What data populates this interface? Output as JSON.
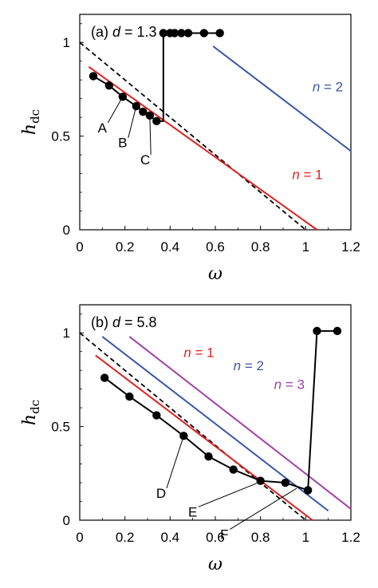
{
  "chart_data": [
    {
      "type": "line",
      "panel_label": "(a)",
      "param_name": "d",
      "param_value": "1.3",
      "xlabel": "ω",
      "ylabel_main": "h",
      "ylabel_sub": "dc",
      "xlim": [
        0,
        1.2
      ],
      "ylim": [
        0,
        1.15
      ],
      "xticks": [
        "0",
        "0.2",
        "0.4",
        "0.6",
        "0.8",
        "1",
        "1.2"
      ],
      "yticks": [
        "0",
        "0.5",
        "1"
      ],
      "series": [
        {
          "kind": "dashed",
          "color": "#000000",
          "x": [
            0,
            1.0
          ],
          "y": [
            1.0,
            0.0
          ]
        },
        {
          "kind": "line",
          "label": "n = 1",
          "color": "#e02020",
          "x": [
            0.04,
            1.05
          ],
          "y": [
            0.87,
            0.0
          ]
        },
        {
          "kind": "line",
          "label": "n = 2",
          "color": "#3a56a8",
          "x": [
            0.59,
            1.2
          ],
          "y": [
            0.98,
            0.42
          ]
        },
        {
          "kind": "markers",
          "color": "#000000",
          "x": [
            0.06,
            0.13,
            0.19,
            0.25,
            0.28,
            0.31,
            0.34,
            0.37,
            0.37,
            0.4,
            0.42,
            0.45,
            0.48,
            0.55,
            0.62
          ],
          "y": [
            0.82,
            0.77,
            0.71,
            0.66,
            0.63,
            0.61,
            0.58,
            0.58,
            1.05,
            1.05,
            1.05,
            1.05,
            1.05,
            1.05,
            1.05
          ],
          "markers_at": [
            0,
            1,
            2,
            3,
            4,
            5,
            6,
            8,
            9,
            10,
            11,
            12,
            13,
            14
          ]
        }
      ],
      "annotations": [
        {
          "text": "A",
          "tx": 0.1,
          "ty": 0.52,
          "px": 0.19,
          "py": 0.71
        },
        {
          "text": "B",
          "tx": 0.19,
          "ty": 0.44,
          "px": 0.25,
          "py": 0.66
        },
        {
          "text": "C",
          "tx": 0.29,
          "ty": 0.35,
          "px": 0.31,
          "py": 0.61
        }
      ],
      "series_labels": [
        {
          "text": "n = 1",
          "var": "n",
          "val": "1",
          "color": "#e02020",
          "x": 0.94,
          "y": 0.27
        },
        {
          "text": "n = 2",
          "var": "n",
          "val": "2",
          "color": "#3a56a8",
          "x": 1.03,
          "y": 0.74
        }
      ]
    },
    {
      "type": "line",
      "panel_label": "(b)",
      "param_name": "d",
      "param_value": "5.8",
      "xlabel": "ω",
      "ylabel_main": "h",
      "ylabel_sub": "dc",
      "xlim": [
        0,
        1.2
      ],
      "ylim": [
        0,
        1.15
      ],
      "xticks": [
        "0",
        "0.2",
        "0.4",
        "0.6",
        "0.8",
        "1",
        "1.2"
      ],
      "yticks": [
        "0",
        "0.5",
        "1"
      ],
      "series": [
        {
          "kind": "dashed",
          "color": "#000000",
          "x": [
            0,
            1.0
          ],
          "y": [
            1.0,
            0.0
          ]
        },
        {
          "kind": "line",
          "label": "n = 1",
          "color": "#e02020",
          "x": [
            0.07,
            1.03
          ],
          "y": [
            0.88,
            0.0
          ]
        },
        {
          "kind": "line",
          "label": "n = 2",
          "color": "#3a56a8",
          "x": [
            0.1,
            1.1
          ],
          "y": [
            0.98,
            0.05
          ]
        },
        {
          "kind": "line",
          "label": "n = 3",
          "color": "#a040a8",
          "x": [
            0.22,
            1.2
          ],
          "y": [
            0.98,
            0.06
          ]
        },
        {
          "kind": "markers",
          "color": "#000000",
          "x": [
            0.11,
            0.22,
            0.34,
            0.46,
            0.57,
            0.68,
            0.8,
            0.91,
            1.01,
            1.05,
            1.14
          ],
          "y": [
            0.76,
            0.66,
            0.56,
            0.45,
            0.34,
            0.27,
            0.21,
            0.2,
            0.16,
            1.01,
            1.01
          ]
        }
      ],
      "annotations": [
        {
          "text": "D",
          "tx": 0.36,
          "ty": 0.12,
          "px": 0.46,
          "py": 0.45
        },
        {
          "text": "E",
          "tx": 0.5,
          "ty": 0.02,
          "px": 0.81,
          "py": 0.21
        },
        {
          "text": "F",
          "tx": 0.64,
          "ty": -0.1,
          "px": 0.96,
          "py": 0.17
        }
      ],
      "series_labels": [
        {
          "text": "n = 1",
          "var": "n",
          "val": "1",
          "color": "#e02020",
          "x": 0.46,
          "y": 0.87
        },
        {
          "text": "n = 2",
          "var": "n",
          "val": "2",
          "color": "#3a56a8",
          "x": 0.68,
          "y": 0.8
        },
        {
          "text": "n = 3",
          "var": "n",
          "val": "3",
          "color": "#a040a8",
          "x": 0.86,
          "y": 0.7
        }
      ]
    }
  ]
}
